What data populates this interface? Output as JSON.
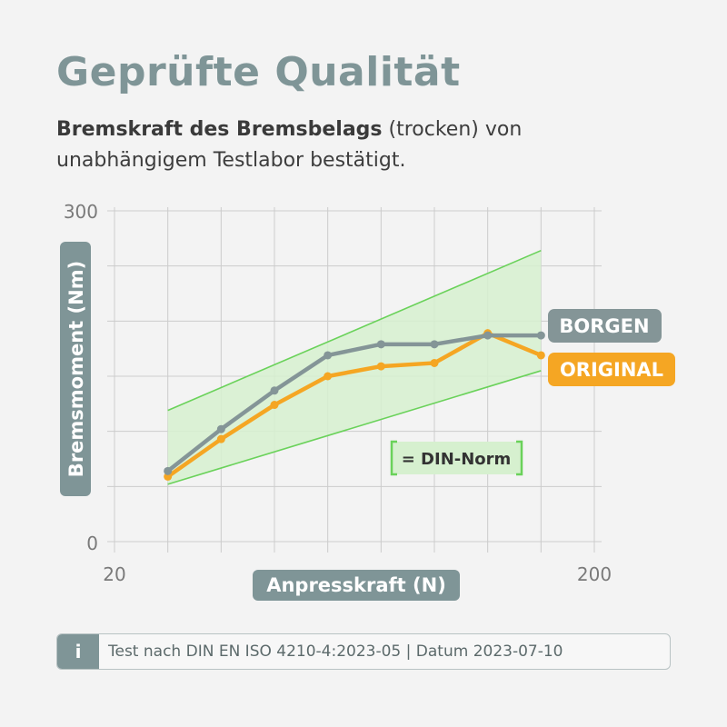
{
  "header": {
    "title": "Geprüfte Qualität",
    "subtitle_bold": "Bremskraft des Bremsbelags",
    "subtitle_rest": " (trocken) von unabhängigem Testlabor bestätigt."
  },
  "footer": {
    "icon": "i",
    "note": "Test nach DIN EN ISO 4210-4:2023-05 | Datum 2023-07-10"
  },
  "colors": {
    "borgen": "#849597",
    "original": "#f5a623",
    "norm_fill": "#d6f0cf",
    "norm_line": "#6ad25a",
    "axis_label_bg": "#7f9597",
    "grid": "#cccccc"
  },
  "chart_data": {
    "type": "line",
    "xlabel": "Anpresskraft (N)",
    "ylabel": "Bremsmoment (Nm)",
    "xlim": [
      20,
      200
    ],
    "ylim": [
      0,
      300
    ],
    "x_tick_labels": [
      "20",
      "200"
    ],
    "y_tick_labels": [
      "0",
      "300"
    ],
    "x": [
      40,
      60,
      80,
      100,
      120,
      140,
      160,
      180
    ],
    "series": [
      {
        "name": "BORGEN",
        "color": "#849597",
        "values": [
          64,
          102,
          137,
          169,
          179,
          179,
          187,
          187
        ]
      },
      {
        "name": "ORIGINAL",
        "color": "#f5a623",
        "values": [
          59,
          93,
          124,
          150,
          159,
          162,
          189,
          169
        ]
      }
    ],
    "din_norm": {
      "label": "= DIN-Norm",
      "lower": [
        [
          40,
          52
        ],
        [
          180,
          155
        ]
      ],
      "upper": [
        [
          40,
          119
        ],
        [
          180,
          264
        ]
      ]
    },
    "grid": true
  }
}
